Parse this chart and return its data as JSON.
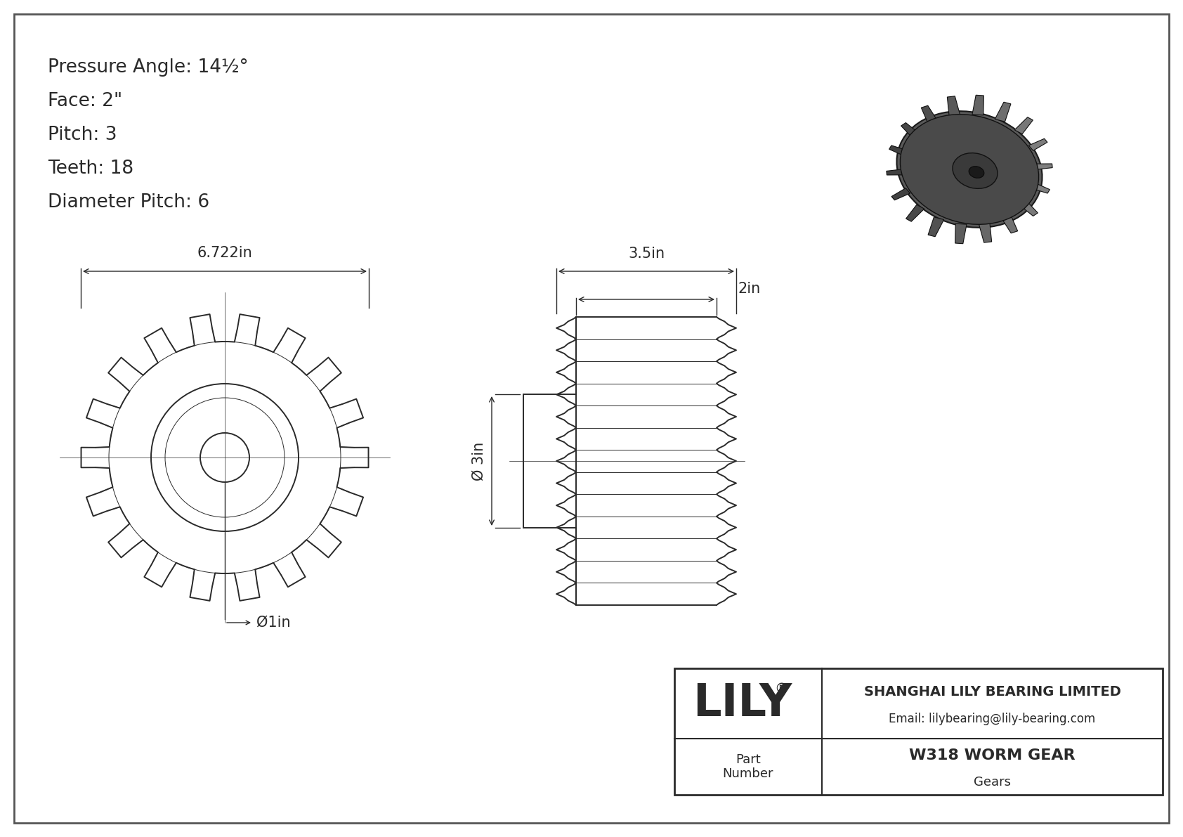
{
  "bg_color": "#ffffff",
  "line_color": "#2a2a2a",
  "specs": [
    "Pressure Angle: 14½°",
    "Face: 2\"",
    "Pitch: 3",
    "Teeth: 18",
    "Diameter Pitch: 6"
  ],
  "dim_outer": "6.722in",
  "dim_bore": "Ø1in",
  "dim_side_outer": "3.5in",
  "dim_side_face": "2in",
  "dim_side_bore": "Ø 3in",
  "company": "SHANGHAI LILY BEARING LIMITED",
  "email": "Email: lilybearing@lily-bearing.com",
  "part_label": "Part\nNumber",
  "part_name": "W318 WORM GEAR",
  "category": "Gears",
  "logo": "LILY",
  "logo_reg": "®"
}
